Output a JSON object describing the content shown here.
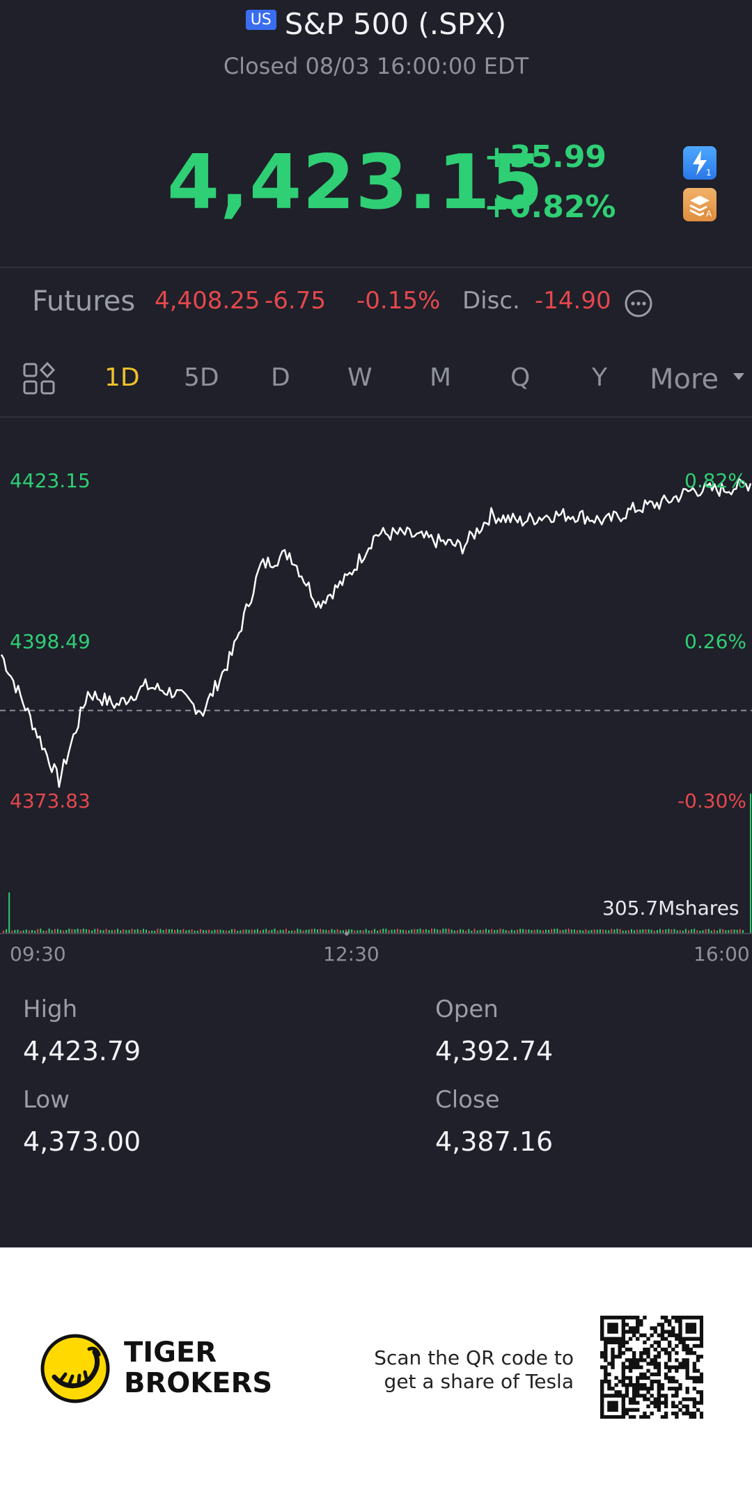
{
  "header": {
    "market_badge": "US",
    "title": "S&P 500 (.SPX)",
    "status": "Closed 08/03 16:00:00 EDT",
    "price": "4,423.15",
    "change": "+35.99",
    "change_pct": "+0.82%",
    "icons": [
      "flash-icon",
      "layers-icon"
    ]
  },
  "futures": {
    "label": "Futures",
    "price": "4,408.25",
    "change": "-6.75",
    "change_pct": "-0.15%",
    "disc_label": "Disc.",
    "disc_value": "-14.90"
  },
  "tabs": {
    "items": [
      "1D",
      "5D",
      "D",
      "W",
      "M",
      "Q",
      "Y"
    ],
    "active": "1D",
    "more_label": "More"
  },
  "chart": {
    "y_left": [
      "4423.15",
      "4398.49",
      "4373.83"
    ],
    "y_right": [
      "0.82%",
      "0.26%",
      "-0.30%"
    ],
    "volume_label": "305.7Mshares",
    "x_labels": [
      "09:30",
      "12:30",
      "16:00"
    ]
  },
  "chart_data": {
    "type": "line",
    "x": [
      "09:30",
      "09:45",
      "10:00",
      "10:15",
      "10:30",
      "10:45",
      "11:00",
      "11:15",
      "11:30",
      "11:45",
      "12:00",
      "12:15",
      "12:30",
      "12:45",
      "13:00",
      "13:15",
      "13:30",
      "13:45",
      "14:00",
      "14:15",
      "14:30",
      "14:45",
      "15:00",
      "15:15",
      "15:30",
      "15:45",
      "16:00"
    ],
    "values": [
      4396,
      4386,
      4376,
      4390,
      4388,
      4391,
      4390,
      4387,
      4396,
      4410,
      4412,
      4404,
      4408,
      4415,
      4415,
      4414,
      4413,
      4418,
      4417,
      4418,
      4418,
      4417,
      4419,
      4420,
      4422,
      4422,
      4423
    ],
    "baseline": 4387.16,
    "ylim": [
      4373.83,
      4423.15
    ],
    "colors": {
      "line": "#ffffff",
      "up": "#2fcf75",
      "down": "#e5484d"
    }
  },
  "stats": {
    "high_label": "High",
    "high_value": "4,423.79",
    "open_label": "Open",
    "open_value": "4,392.74",
    "low_label": "Low",
    "low_value": "4,373.00",
    "close_label": "Close",
    "close_value": "4,387.16"
  },
  "footer": {
    "brand_line1": "TIGER",
    "brand_line2": "BROKERS",
    "promo_line1": "Scan the QR code to",
    "promo_line2": "get a share of Tesla"
  }
}
